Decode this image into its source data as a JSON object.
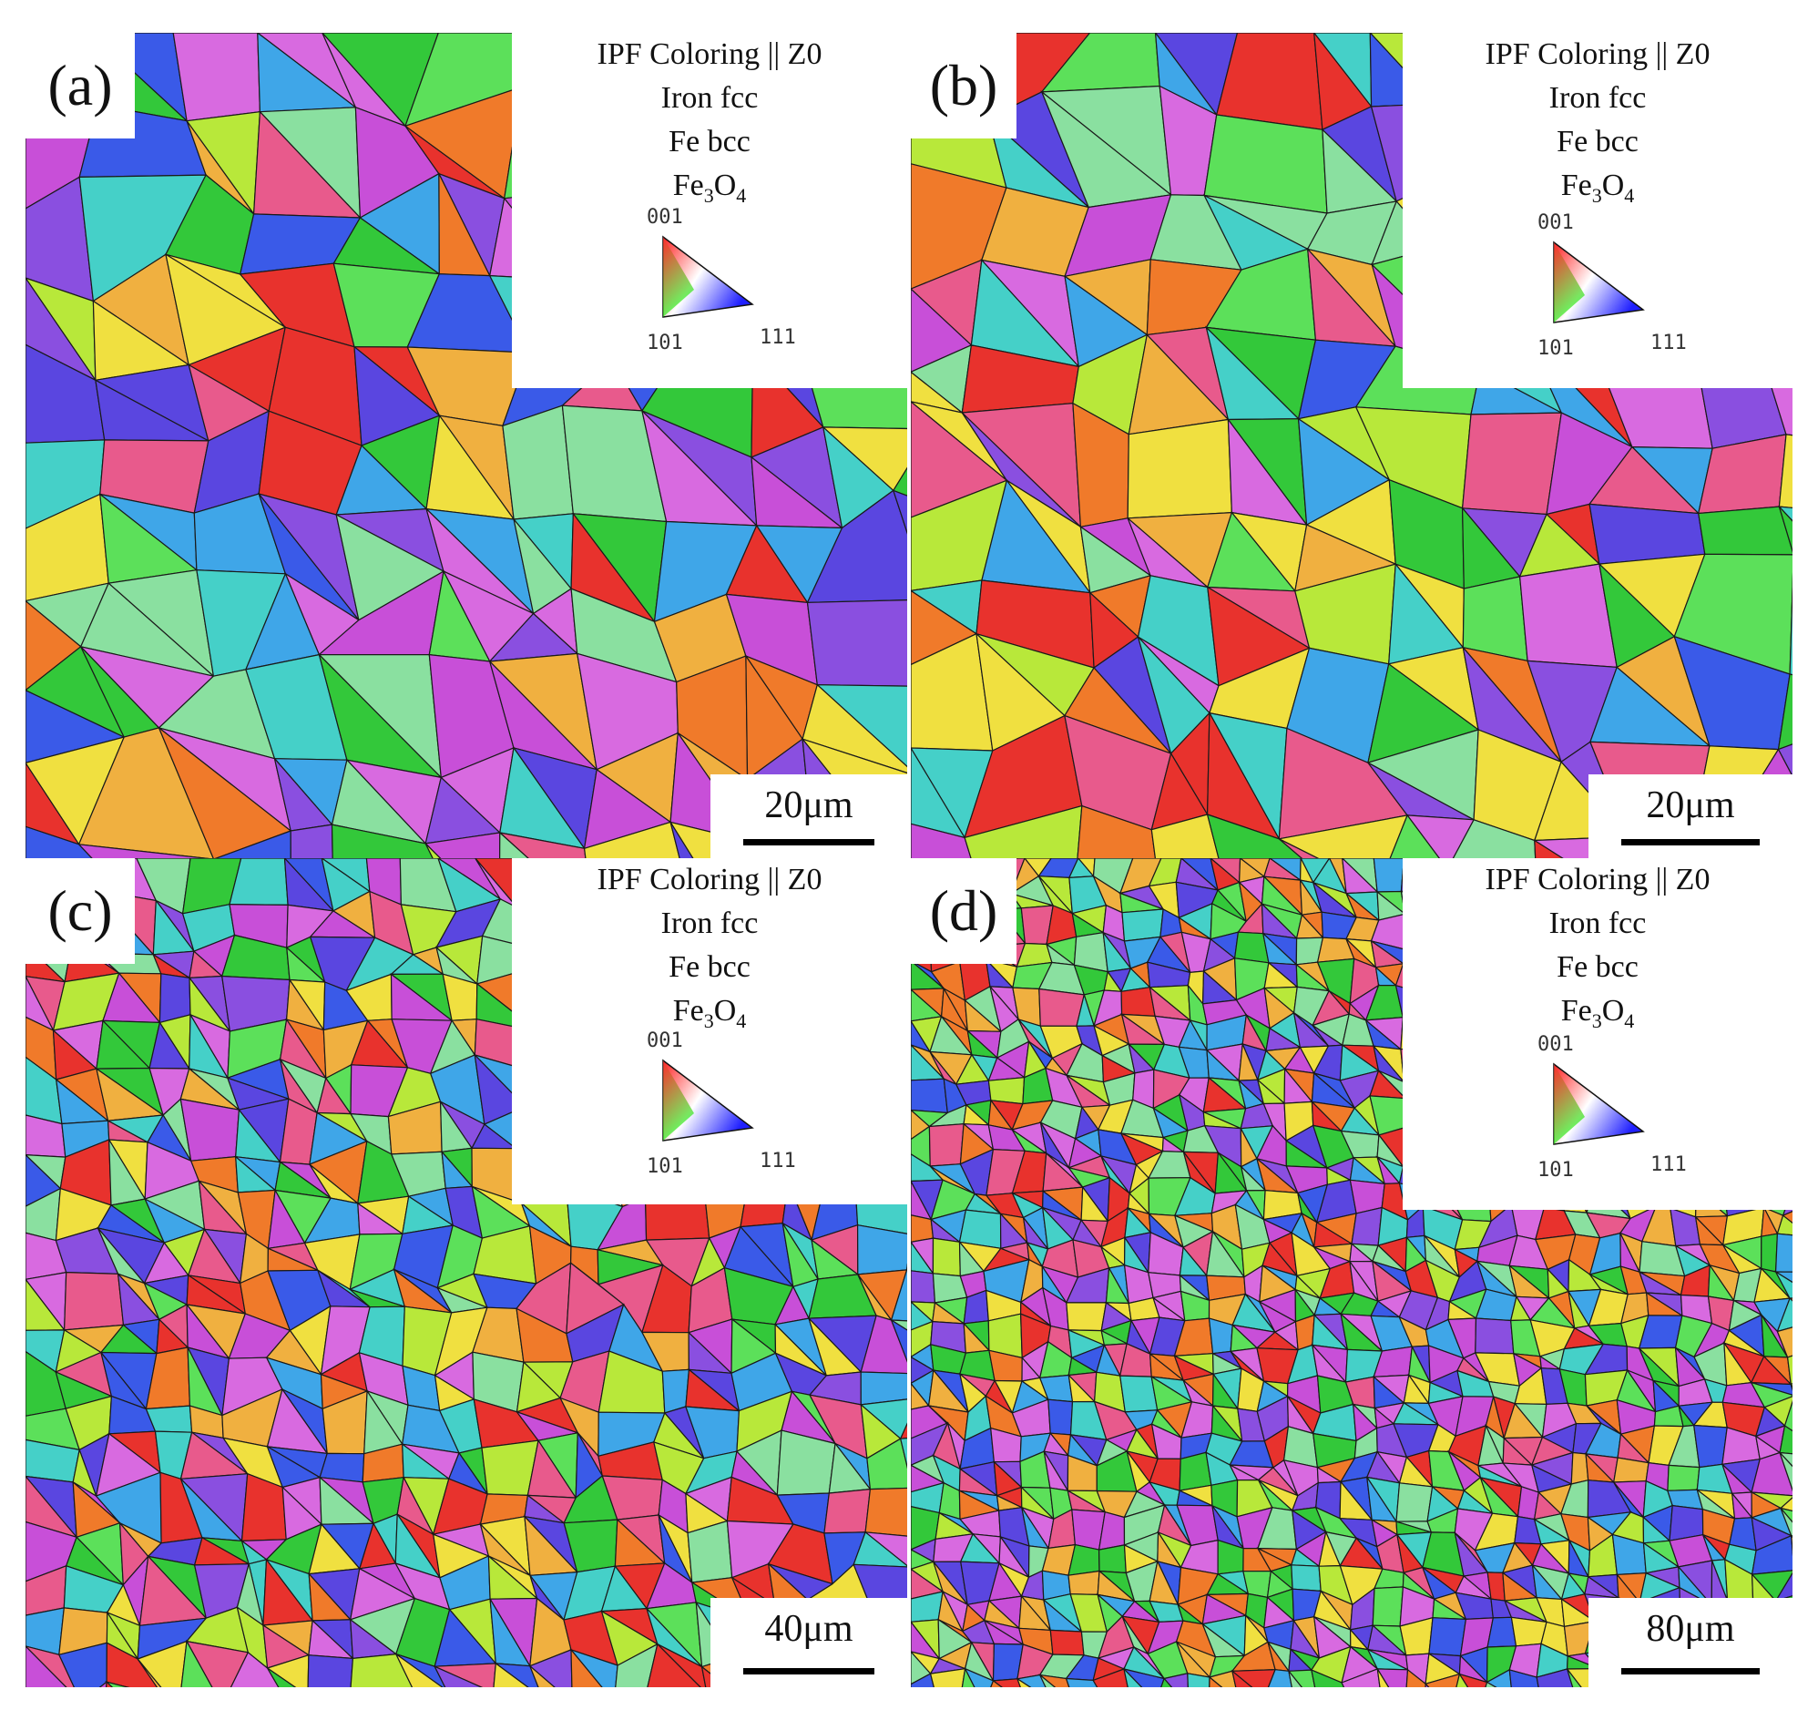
{
  "panels": [
    {
      "id": "a",
      "label": "(a)",
      "legend": {
        "title": "IPF Coloring || Z0",
        "phases": [
          "Iron fcc",
          "Fe bcc"
        ],
        "oxide_main": "Fe",
        "oxide_sub1": "3",
        "oxide_mid": "O",
        "oxide_sub2": "4",
        "triangle_labels": {
          "top": "001",
          "left": "101",
          "right": "111"
        }
      },
      "scale_bar": "20μm"
    },
    {
      "id": "b",
      "label": "(b)",
      "legend": {
        "title": "IPF Coloring || Z0",
        "phases": [
          "Iron fcc",
          "Fe bcc"
        ],
        "oxide_main": "Fe",
        "oxide_sub1": "3",
        "oxide_mid": "O",
        "oxide_sub2": "4",
        "triangle_labels": {
          "top": "001",
          "left": "101",
          "right": "111"
        }
      },
      "scale_bar": "20μm"
    },
    {
      "id": "c",
      "label": "(c)",
      "legend": {
        "title": "IPF Coloring || Z0",
        "phases": [
          "Iron fcc",
          "Fe bcc"
        ],
        "oxide_main": "Fe",
        "oxide_sub1": "3",
        "oxide_mid": "O",
        "oxide_sub2": "4",
        "triangle_labels": {
          "top": "001",
          "left": "101",
          "right": "111"
        }
      },
      "scale_bar": "40μm"
    },
    {
      "id": "d",
      "label": "(d)",
      "legend": {
        "title": "IPF Coloring || Z0",
        "phases": [
          "Iron fcc",
          "Fe bcc"
        ],
        "oxide_main": "Fe",
        "oxide_sub1": "3",
        "oxide_mid": "O",
        "oxide_sub2": "4",
        "triangle_labels": {
          "top": "001",
          "left": "101",
          "right": "111"
        }
      },
      "scale_bar": "80μm"
    }
  ],
  "ipf_palette": [
    "#e8322d",
    "#f07a2a",
    "#e85a8c",
    "#c84fd8",
    "#8a4fe0",
    "#5a46e0",
    "#3a5ae8",
    "#3fa6e8",
    "#45d0c8",
    "#5ce05a",
    "#33c83a",
    "#b8e83a",
    "#f0e040",
    "#f0b040",
    "#d86ae0",
    "#8ae0a0"
  ]
}
